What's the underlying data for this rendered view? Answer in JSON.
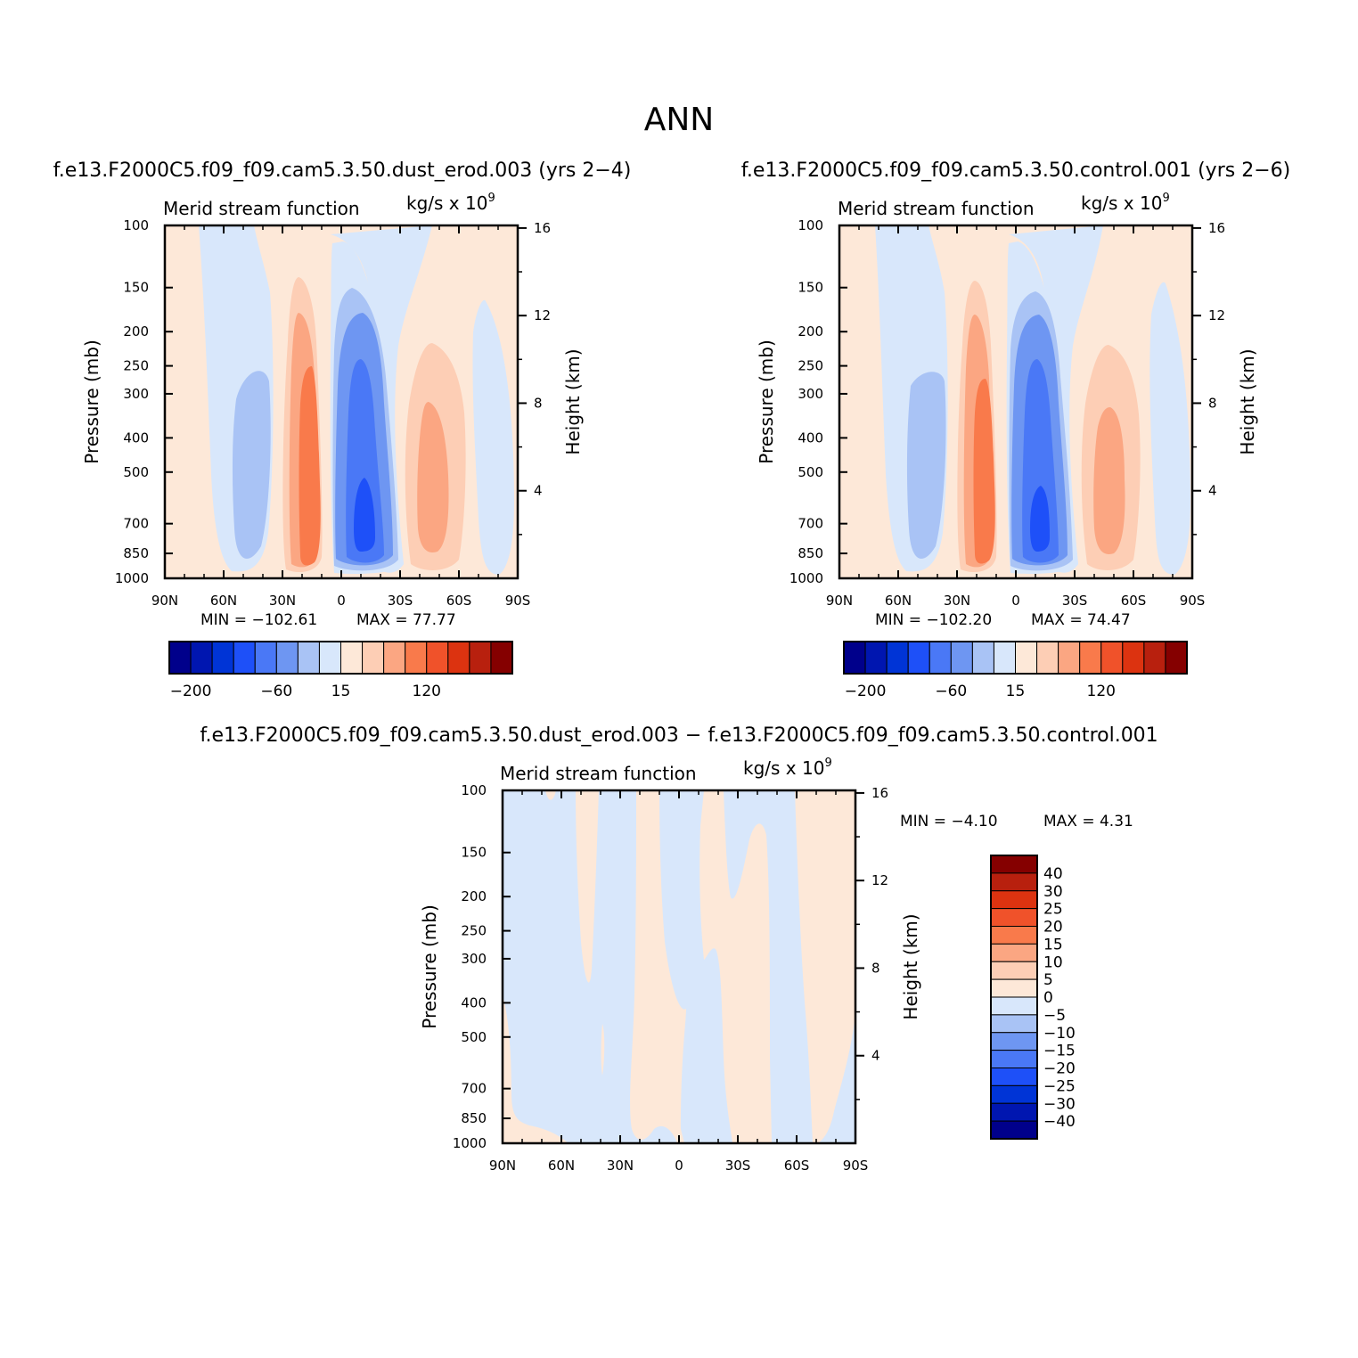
{
  "figure_title": "ANN",
  "colors": {
    "seq15": [
      "#00008B",
      "#0016B0",
      "#0034D6",
      "#1E50F8",
      "#4A78F6",
      "#6E96F2",
      "#A9C3F5",
      "#D8E7FB",
      "#FDE8D8",
      "#FDCEB5",
      "#FBA682",
      "#F97A4B",
      "#F0522A",
      "#DC3310",
      "#B8200E",
      "#850000"
    ],
    "diff": [
      "#00008B",
      "#0016B0",
      "#0034D6",
      "#1E50F8",
      "#4A78F6",
      "#6E96F2",
      "#A9C3F5",
      "#D8E7FB",
      "#FDE8D8",
      "#FDCEB5",
      "#FBA682",
      "#F97A4B",
      "#F0522A",
      "#DC3310",
      "#B8200E",
      "#850000"
    ]
  },
  "chart_data": [
    {
      "type": "heatmap",
      "title": "f.e13.F2000C5.f09_f09.cam5.3.50.dust_erod.003 (yrs 2−4)",
      "left_label": "Merid stream function",
      "units_label": "kg/s x 10",
      "units_exp": "9",
      "ylabel": "Pressure (mb)",
      "ylabel_right": "Height (km)",
      "xticks": [
        "90N",
        "60N",
        "30N",
        "0",
        "30S",
        "60S",
        "90S"
      ],
      "yticks": [
        "100",
        "150",
        "200",
        "250",
        "300",
        "400",
        "500",
        "700",
        "850",
        "1000"
      ],
      "yticks_right": [
        "16",
        "12",
        "8",
        "4"
      ],
      "min_label": "MIN = −102.61",
      "max_label": "MAX =   77.77",
      "min": -102.61,
      "max": 77.77,
      "colorbar_labels": [
        "−200",
        "−60",
        "15",
        "120"
      ],
      "cells": [
        {
          "lat": 64,
          "p": 450,
          "v": -60
        },
        {
          "lat": 15,
          "p": 500,
          "v": 77.77
        },
        {
          "lat": -12,
          "p": 550,
          "v": -102.61
        },
        {
          "lat": -47,
          "p": 480,
          "v": 60
        },
        {
          "lat": -78,
          "p": 400,
          "v": -5
        }
      ]
    },
    {
      "type": "heatmap",
      "title": "f.e13.F2000C5.f09_f09.cam5.3.50.control.001 (yrs 2−6)",
      "left_label": "Merid stream function",
      "units_label": "kg/s x 10",
      "units_exp": "9",
      "ylabel": "Pressure (mb)",
      "ylabel_right": "Height (km)",
      "xticks": [
        "90N",
        "60N",
        "30N",
        "0",
        "30S",
        "60S",
        "90S"
      ],
      "yticks": [
        "100",
        "150",
        "200",
        "250",
        "300",
        "400",
        "500",
        "700",
        "850",
        "1000"
      ],
      "yticks_right": [
        "16",
        "12",
        "8",
        "4"
      ],
      "min_label": "MIN = −102.20",
      "max_label": "MAX =   74.47",
      "min": -102.2,
      "max": 74.47,
      "colorbar_labels": [
        "−200",
        "−60",
        "15",
        "120"
      ]
    },
    {
      "type": "heatmap",
      "title": "f.e13.F2000C5.f09_f09.cam5.3.50.dust_erod.003 − f.e13.F2000C5.f09_f09.cam5.3.50.control.001",
      "left_label": "Merid stream function",
      "units_label": "kg/s x 10",
      "units_exp": "9",
      "ylabel": "Pressure (mb)",
      "ylabel_right": "Height (km)",
      "xticks": [
        "90N",
        "60N",
        "30N",
        "0",
        "30S",
        "60S",
        "90S"
      ],
      "yticks": [
        "100",
        "150",
        "200",
        "250",
        "300",
        "400",
        "500",
        "700",
        "850",
        "1000"
      ],
      "yticks_right": [
        "16",
        "12",
        "8",
        "4"
      ],
      "min_label": "MIN =   −4.10",
      "max_label": "MAX =    4.31",
      "min": -4.1,
      "max": 4.31,
      "colorbar_labels": [
        "40",
        "30",
        "25",
        "20",
        "15",
        "10",
        "5",
        "0",
        "−5",
        "−10",
        "−15",
        "−20",
        "−25",
        "−30",
        "−40"
      ]
    }
  ]
}
